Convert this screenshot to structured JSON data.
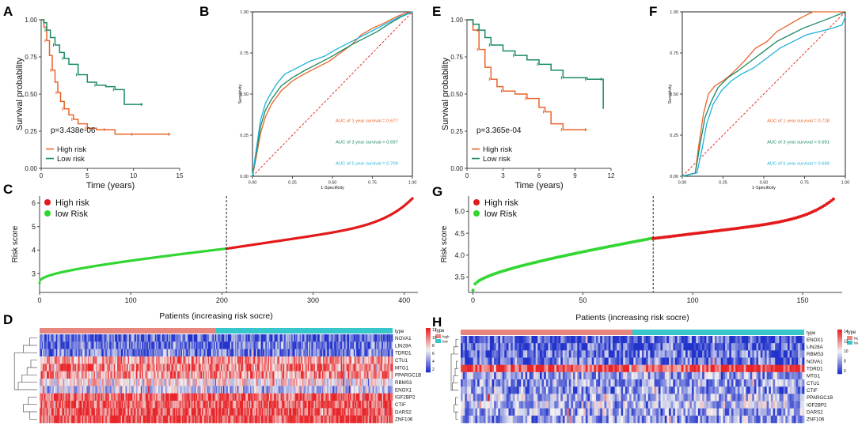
{
  "colors": {
    "high": "#E8642A",
    "low": "#1A8A63",
    "roc1": "#E8642A",
    "roc3": "#1A8A63",
    "roc5": "#1FB2D9",
    "diag": "#E0352B",
    "riskHigh": "#E31A1C",
    "riskLow": "#32D632",
    "typeHigh": "#E7867F",
    "typeLow": "#36C6CC",
    "heatHigh": "#E8262A",
    "heatMid": "#F2F2F2",
    "heatLow": "#2233CC"
  },
  "panel_labels": {
    "A": "A",
    "B": "B",
    "C": "C",
    "D": "D",
    "E": "E",
    "F": "F",
    "G": "G",
    "H": "H"
  },
  "chart_data": [
    {
      "id": "A",
      "type": "line",
      "kind": "kaplan-meier",
      "title": "",
      "xlabel": "Time (years)",
      "ylabel": "Survival probability",
      "xlim": [
        0,
        15
      ],
      "ylim": [
        0,
        1
      ],
      "xticks": [
        0,
        5,
        10,
        15
      ],
      "yticks": [
        "0.00",
        "0.25",
        "0.50",
        "0.75",
        "1.00"
      ],
      "pvalue": "p=3.438e-06",
      "legend": [
        "High risk",
        "Low risk"
      ],
      "series": [
        {
          "name": "High risk",
          "color_key": "high",
          "x": [
            0,
            0.3,
            0.6,
            0.9,
            1.2,
            1.5,
            1.8,
            2.1,
            2.5,
            3.0,
            3.5,
            4.0,
            5.0,
            6.0,
            7.0,
            8.0,
            10.0,
            12.0,
            14.0
          ],
          "y": [
            1.0,
            0.95,
            0.86,
            0.76,
            0.66,
            0.58,
            0.51,
            0.45,
            0.4,
            0.36,
            0.33,
            0.3,
            0.27,
            0.26,
            0.26,
            0.23,
            0.23,
            0.23,
            0.23
          ]
        },
        {
          "name": "Low risk",
          "color_key": "low",
          "x": [
            0,
            0.3,
            0.6,
            1.0,
            1.5,
            2.0,
            2.5,
            3.0,
            4.0,
            5.0,
            6.0,
            7.0,
            8.0,
            9.0,
            11.0
          ],
          "y": [
            1.0,
            0.98,
            0.93,
            0.88,
            0.83,
            0.78,
            0.74,
            0.7,
            0.63,
            0.58,
            0.56,
            0.55,
            0.53,
            0.43,
            0.43
          ]
        }
      ]
    },
    {
      "id": "B",
      "type": "line",
      "kind": "roc",
      "title": "",
      "xlabel": "1-Specificity",
      "ylabel": "Sensitivity",
      "xlim": [
        0,
        1
      ],
      "ylim": [
        0,
        1
      ],
      "xticks": [
        "0.00",
        "0.25",
        "0.50",
        "0.75",
        "1.00"
      ],
      "yticks": [
        "0.00",
        "0.25",
        "0.50",
        "0.75",
        "1.00"
      ],
      "annotations": [
        "AUC of 1 year survival = 0.677",
        "AUC of 3 year survival = 0.697",
        "AUC of 5 year survival = 0.709"
      ],
      "series": [
        {
          "name": "AUC of 1 year survival",
          "color_key": "roc1",
          "x": [
            0,
            0.02,
            0.05,
            0.08,
            0.12,
            0.18,
            0.25,
            0.32,
            0.4,
            0.48,
            0.55,
            0.62,
            0.68,
            0.75,
            0.82,
            0.9,
            0.95,
            1.0
          ],
          "y": [
            0,
            0.1,
            0.26,
            0.36,
            0.44,
            0.52,
            0.58,
            0.62,
            0.66,
            0.7,
            0.75,
            0.8,
            0.86,
            0.9,
            0.93,
            0.97,
            0.99,
            1.0
          ]
        },
        {
          "name": "AUC of 3 year survival",
          "color_key": "roc3",
          "x": [
            0,
            0.02,
            0.05,
            0.08,
            0.12,
            0.18,
            0.25,
            0.32,
            0.4,
            0.48,
            0.55,
            0.62,
            0.7,
            0.78,
            0.86,
            0.93,
            1.0
          ],
          "y": [
            0,
            0.12,
            0.3,
            0.4,
            0.47,
            0.55,
            0.6,
            0.64,
            0.68,
            0.72,
            0.76,
            0.8,
            0.84,
            0.88,
            0.93,
            0.97,
            1.0
          ]
        },
        {
          "name": "AUC of 5 year survival",
          "color_key": "roc5",
          "x": [
            0,
            0.02,
            0.05,
            0.08,
            0.1,
            0.15,
            0.2,
            0.28,
            0.36,
            0.45,
            0.52,
            0.6,
            0.68,
            0.76,
            0.84,
            0.92,
            1.0
          ],
          "y": [
            0,
            0.14,
            0.34,
            0.44,
            0.48,
            0.56,
            0.62,
            0.66,
            0.7,
            0.73,
            0.77,
            0.81,
            0.85,
            0.89,
            0.93,
            0.97,
            1.0
          ]
        }
      ]
    },
    {
      "id": "C",
      "type": "scatter",
      "kind": "risk-score",
      "xlabel": "",
      "ylabel": "Risk score",
      "xlim": [
        0,
        415
      ],
      "ylim": [
        2.2,
        6.3
      ],
      "xticks": [
        0,
        100,
        200,
        300,
        400
      ],
      "yticks": [
        3,
        4,
        5,
        6
      ],
      "n": 410,
      "cutoff": 205,
      "y_start": 2.6,
      "y_cut": 4.06,
      "y_end": 6.2,
      "legend": [
        "High risk",
        "low Risk"
      ]
    },
    {
      "id": "D",
      "type": "heatmap",
      "title": "Patients (increasing risk socre)",
      "genes": [
        "NOVA1",
        "LIN28A",
        "TDRD1",
        "CTU1",
        "MTG1",
        "PPARGC1B",
        "RBMS3",
        "ENOX1",
        "IGF2BP2",
        "CTIF",
        "DARS2",
        "ZNF106"
      ],
      "levels": [
        0.15,
        0.18,
        0.2,
        0.72,
        0.78,
        0.74,
        0.55,
        0.4,
        0.85,
        0.88,
        0.9,
        0.92
      ],
      "type_label": "type",
      "type_entries": [
        "high",
        "low"
      ],
      "scale_ticks": [
        "12",
        "10",
        "8",
        "6",
        "4",
        "2"
      ],
      "n": 300,
      "cutoff_frac": 0.5
    },
    {
      "id": "E",
      "type": "line",
      "kind": "kaplan-meier",
      "title": "",
      "xlabel": "Time (years)",
      "ylabel": "Survival probability",
      "xlim": [
        0,
        12
      ],
      "ylim": [
        0,
        1
      ],
      "xticks": [
        0,
        3,
        6,
        9,
        12
      ],
      "yticks": [
        "0.00",
        "0.25",
        "0.50",
        "0.75",
        "1.00"
      ],
      "pvalue": "p=3.365e-04",
      "legend": [
        "High risk",
        "Low risk"
      ],
      "series": [
        {
          "name": "High risk",
          "color_key": "high",
          "x": [
            0,
            0.5,
            1.0,
            1.5,
            2.0,
            2.5,
            3.0,
            4.0,
            5.0,
            6.0,
            6.5,
            7.0,
            8.0,
            9.0,
            10.0
          ],
          "y": [
            1.0,
            0.93,
            0.8,
            0.68,
            0.6,
            0.55,
            0.52,
            0.5,
            0.47,
            0.41,
            0.38,
            0.3,
            0.26,
            0.26,
            0.26
          ]
        },
        {
          "name": "Low risk",
          "color_key": "low",
          "x": [
            0,
            0.5,
            1.0,
            1.5,
            2.0,
            3.0,
            4.0,
            5.0,
            6.0,
            7.0,
            8.0,
            9.0,
            10.0,
            11.0,
            11.3,
            11.35
          ],
          "y": [
            1.0,
            0.97,
            0.93,
            0.88,
            0.83,
            0.79,
            0.76,
            0.73,
            0.7,
            0.66,
            0.61,
            0.61,
            0.6,
            0.6,
            0.6,
            0.4
          ]
        }
      ]
    },
    {
      "id": "F",
      "type": "line",
      "kind": "roc",
      "title": "",
      "xlabel": "1-Specificity",
      "ylabel": "Sensitivity",
      "xlim": [
        0,
        1
      ],
      "ylim": [
        0,
        1
      ],
      "xticks": [
        "0.00",
        "0.25",
        "0.50",
        "0.75",
        "1.00"
      ],
      "yticks": [
        "0.00",
        "0.25",
        "0.50",
        "0.75",
        "1.00"
      ],
      "annotations": [
        "AUC of 1 year survival = 0.728",
        "AUC of 3 year survival = 0.691",
        "AUC of 5 year survival = 0.649"
      ],
      "series": [
        {
          "name": "AUC of 1 year survival",
          "color_key": "roc1",
          "x": [
            0,
            0.08,
            0.1,
            0.13,
            0.16,
            0.2,
            0.25,
            0.3,
            0.38,
            0.45,
            0.52,
            0.58,
            0.65,
            0.72,
            0.8,
            0.9,
            1.0
          ],
          "y": [
            0,
            0.02,
            0.18,
            0.38,
            0.5,
            0.55,
            0.58,
            0.62,
            0.7,
            0.78,
            0.82,
            0.88,
            0.92,
            0.96,
            1.0,
            1.0,
            1.0
          ]
        },
        {
          "name": "AUC of 3 year survival",
          "color_key": "roc3",
          "x": [
            0,
            0.08,
            0.11,
            0.14,
            0.18,
            0.22,
            0.28,
            0.34,
            0.42,
            0.5,
            0.58,
            0.66,
            0.74,
            0.82,
            0.9,
            1.0
          ],
          "y": [
            0,
            0.02,
            0.2,
            0.36,
            0.46,
            0.54,
            0.6,
            0.64,
            0.7,
            0.76,
            0.82,
            0.86,
            0.9,
            0.93,
            0.96,
            1.0
          ]
        },
        {
          "name": "AUC of 5 year survival",
          "color_key": "roc5",
          "x": [
            0,
            0.09,
            0.12,
            0.15,
            0.19,
            0.24,
            0.3,
            0.36,
            0.44,
            0.52,
            0.6,
            0.68,
            0.76,
            0.84,
            0.92,
            0.98,
            1.0
          ],
          "y": [
            0,
            0.02,
            0.16,
            0.32,
            0.44,
            0.52,
            0.58,
            0.62,
            0.66,
            0.72,
            0.78,
            0.82,
            0.86,
            0.88,
            0.9,
            0.92,
            0.97
          ]
        }
      ]
    },
    {
      "id": "G",
      "type": "scatter",
      "kind": "risk-score",
      "xlabel": "",
      "ylabel": "Risk score",
      "xlim": [
        -2,
        168
      ],
      "ylim": [
        3.15,
        5.35
      ],
      "xticks": [
        0,
        50,
        100,
        150
      ],
      "yticks": [
        "3.5",
        "4.0",
        "4.5",
        "5.0"
      ],
      "n": 165,
      "cutoff": 82,
      "y_start": 3.2,
      "y_cut": 4.38,
      "y_end": 5.28,
      "legend": [
        "High risk",
        "low Risk"
      ]
    },
    {
      "id": "H",
      "type": "heatmap",
      "title": "Patients (increasing risk socre)",
      "genes": [
        "ENOX1",
        "LIN28A",
        "RBMS3",
        "NOVA1",
        "TDRD1",
        "MTG1",
        "CTU1",
        "CTIF",
        "PPARGC1B",
        "IGF2BP2",
        "DARS2",
        "ZNF106"
      ],
      "levels": [
        0.12,
        0.14,
        0.16,
        0.18,
        0.92,
        0.3,
        0.28,
        0.26,
        0.34,
        0.36,
        0.3,
        0.28
      ],
      "type_label": "type",
      "type_entries": [
        "high",
        "low"
      ],
      "scale_ticks": [
        "14",
        "12",
        "10",
        "8",
        "6"
      ],
      "n": 165,
      "cutoff_frac": 0.5
    }
  ]
}
